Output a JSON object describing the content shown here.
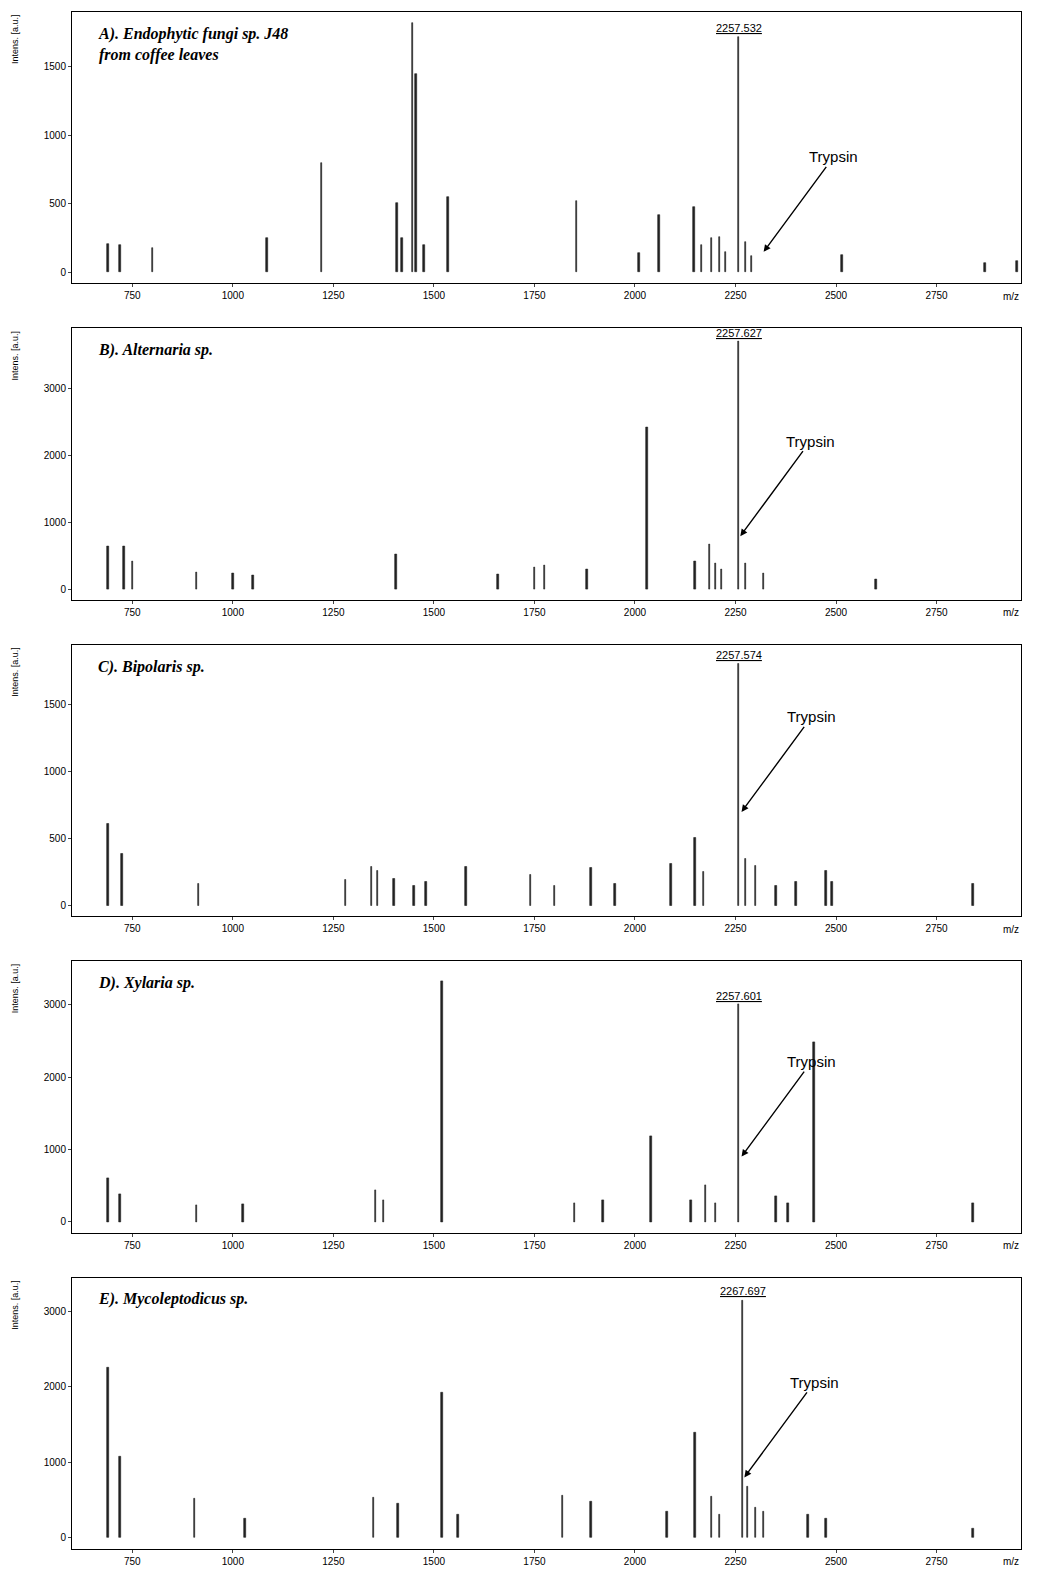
{
  "chart_data": [
    {
      "type": "bar",
      "title": "A). Endophytic fungi sp. J48 from coffee leaves",
      "xlabel": "m/z",
      "ylabel": "Intens. [a.u.]",
      "x": [
        690,
        720,
        800,
        1085,
        1220,
        1408,
        1420,
        1447,
        1455,
        1475,
        1535,
        1855,
        2010,
        2060,
        2147,
        2165,
        2190,
        2210,
        2225,
        2257.532,
        2275,
        2290,
        2515,
        2870,
        2950
      ],
      "values": [
        210,
        200,
        180,
        250,
        800,
        510,
        250,
        1820,
        1450,
        200,
        550,
        520,
        140,
        420,
        480,
        200,
        250,
        260,
        150,
        1720,
        220,
        120,
        130,
        70,
        80
      ],
      "color": "#222222",
      "xlim": [
        600,
        2960
      ],
      "xticks": [
        750,
        1000,
        1250,
        1500,
        1750,
        2000,
        2250,
        2500,
        2750
      ],
      "ylim": [
        -80,
        1900
      ],
      "yticks": [
        0,
        500,
        1000,
        1500
      ],
      "grid": false,
      "annotations": [
        {
          "x": 2257.532,
          "y": 1720,
          "text": "2257.532"
        },
        {
          "x": 2320,
          "y": 150,
          "text": "Trypsin",
          "arrow": true
        }
      ]
    },
    {
      "type": "bar",
      "title": "B). Alternaria sp.",
      "xlabel": "m/z",
      "ylabel": "Intens. [a.u.]",
      "x": [
        690,
        730,
        750,
        910,
        1000,
        1050,
        1405,
        1660,
        1750,
        1775,
        1880,
        2030,
        2150,
        2185,
        2200,
        2215,
        2257.627,
        2275,
        2320,
        2600
      ],
      "values": [
        650,
        650,
        430,
        260,
        250,
        220,
        530,
        230,
        330,
        360,
        300,
        2430,
        420,
        680,
        400,
        300,
        3700,
        400,
        250,
        150
      ],
      "color": "#222222",
      "xlim": [
        600,
        2960
      ],
      "xticks": [
        750,
        1000,
        1250,
        1500,
        1750,
        2000,
        2250,
        2500,
        2750
      ],
      "ylim": [
        -150,
        3900
      ],
      "yticks": [
        0,
        1000,
        2000,
        3000
      ],
      "grid": false,
      "annotations": [
        {
          "x": 2257.627,
          "y": 3700,
          "text": "2257.627"
        },
        {
          "x": 2262,
          "y": 800,
          "text": "Trypsin",
          "arrow": true
        }
      ]
    },
    {
      "type": "bar",
      "title": "C). Bipolaris sp.",
      "xlabel": "m/z",
      "ylabel": "Intens. [a.u.]",
      "x": [
        690,
        725,
        915,
        1280,
        1345,
        1360,
        1400,
        1450,
        1480,
        1580,
        1740,
        1800,
        1890,
        1950,
        2090,
        2150,
        2170,
        2257.574,
        2275,
        2300,
        2350,
        2400,
        2475,
        2490,
        2840
      ],
      "values": [
        610,
        390,
        160,
        190,
        290,
        260,
        200,
        150,
        180,
        290,
        230,
        150,
        280,
        160,
        310,
        510,
        250,
        1810,
        350,
        300,
        150,
        180,
        260,
        180,
        160
      ],
      "color": "#222222",
      "xlim": [
        600,
        2960
      ],
      "xticks": [
        750,
        1000,
        1250,
        1500,
        1750,
        2000,
        2250,
        2500,
        2750
      ],
      "ylim": [
        -80,
        1950
      ],
      "yticks": [
        0,
        500,
        1000,
        1500
      ],
      "grid": false,
      "annotations": [
        {
          "x": 2257.574,
          "y": 1810,
          "text": "2257.574"
        },
        {
          "x": 2265,
          "y": 700,
          "text": "Trypsin",
          "arrow": true
        }
      ]
    },
    {
      "type": "bar",
      "title": "D). Xylaria sp.",
      "xlabel": "m/z",
      "ylabel": "Intens. [a.u.]",
      "x": [
        690,
        720,
        910,
        1025,
        1355,
        1375,
        1520,
        1850,
        1920,
        2040,
        2140,
        2175,
        2200,
        2257.601,
        2350,
        2380,
        2445,
        2840
      ],
      "values": [
        600,
        380,
        230,
        240,
        430,
        300,
        3330,
        250,
        300,
        1180,
        300,
        500,
        250,
        3000,
        350,
        250,
        2480,
        250
      ],
      "color": "#222222",
      "xlim": [
        600,
        2960
      ],
      "xticks": [
        750,
        1000,
        1250,
        1500,
        1750,
        2000,
        2250,
        2500,
        2750
      ],
      "ylim": [
        -150,
        3600
      ],
      "yticks": [
        0,
        1000,
        2000,
        3000
      ],
      "grid": false,
      "annotations": [
        {
          "x": 2257.601,
          "y": 3000,
          "text": "2257.601"
        },
        {
          "x": 2265,
          "y": 900,
          "text": "Trypsin",
          "arrow": true
        }
      ]
    },
    {
      "type": "bar",
      "title": "E). Mycoleptodicus sp.",
      "xlabel": "m/z",
      "ylabel": "Intens. [a.u.]",
      "x": [
        690,
        720,
        905,
        1030,
        1350,
        1410,
        1520,
        1560,
        1820,
        1890,
        2080,
        2150,
        2190,
        2210,
        2267.697,
        2280,
        2300,
        2320,
        2430,
        2475,
        2840
      ],
      "values": [
        2250,
        1080,
        520,
        250,
        530,
        450,
        1930,
        300,
        560,
        480,
        350,
        1400,
        540,
        300,
        3150,
        680,
        400,
        350,
        300,
        250,
        120
      ],
      "color": "#222222",
      "xlim": [
        600,
        2960
      ],
      "xticks": [
        750,
        1000,
        1250,
        1500,
        1750,
        2000,
        2250,
        2500,
        2750
      ],
      "ylim": [
        -150,
        3450
      ],
      "yticks": [
        0,
        1000,
        2000,
        3000
      ],
      "grid": false,
      "annotations": [
        {
          "x": 2267.697,
          "y": 3150,
          "text": "2267.697"
        },
        {
          "x": 2272,
          "y": 800,
          "text": "Trypsin",
          "arrow": true
        }
      ]
    }
  ]
}
